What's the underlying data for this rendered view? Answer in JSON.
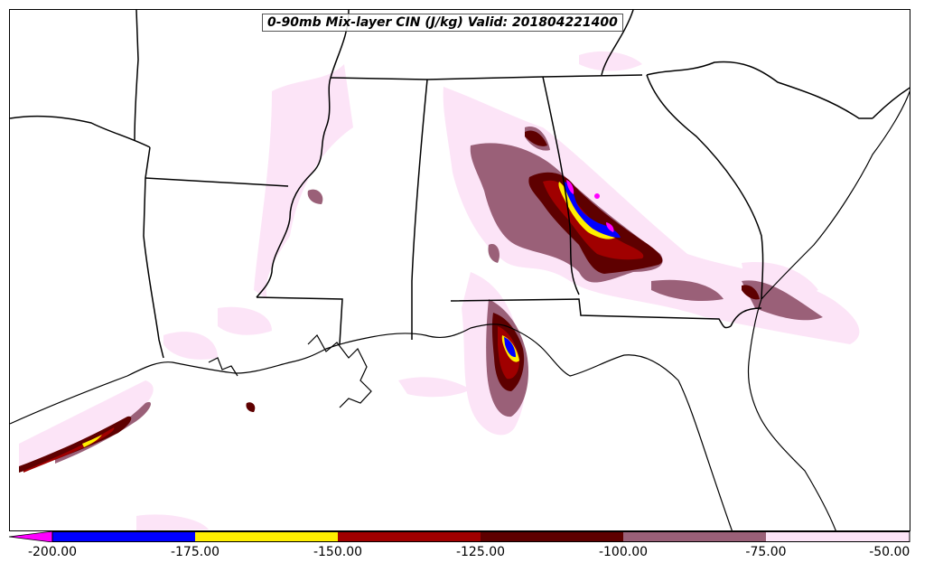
{
  "title": "0-90mb Mix-layer CIN (J/kg) Valid: 201804221400",
  "colorbar": {
    "ticks": [
      "-200.00",
      "-175.00",
      "-150.00",
      "-125.00",
      "-100.00",
      "-75.00",
      "-50.00"
    ],
    "bins": [
      {
        "range": "< -200",
        "color": "#ff00ff"
      },
      {
        "range": "-200 to -175",
        "color": "#0000ff"
      },
      {
        "range": "-175 to -150",
        "color": "#ffee00"
      },
      {
        "range": "-150 to -125",
        "color": "#a00000"
      },
      {
        "range": "-125 to -100",
        "color": "#5e0000"
      },
      {
        "range": "-100 to -75",
        "color": "#9a6078"
      },
      {
        "range": "-75 to -50",
        "color": "#fce4f7"
      }
    ]
  },
  "colors": {
    "pale_pink": "#fce4f7",
    "mauve": "#9a6078",
    "dark_red": "#5e0000",
    "red": "#a00000",
    "yellow": "#ffee00",
    "blue": "#0000ff",
    "magenta": "#ff00ff",
    "boundary": "#000000"
  }
}
